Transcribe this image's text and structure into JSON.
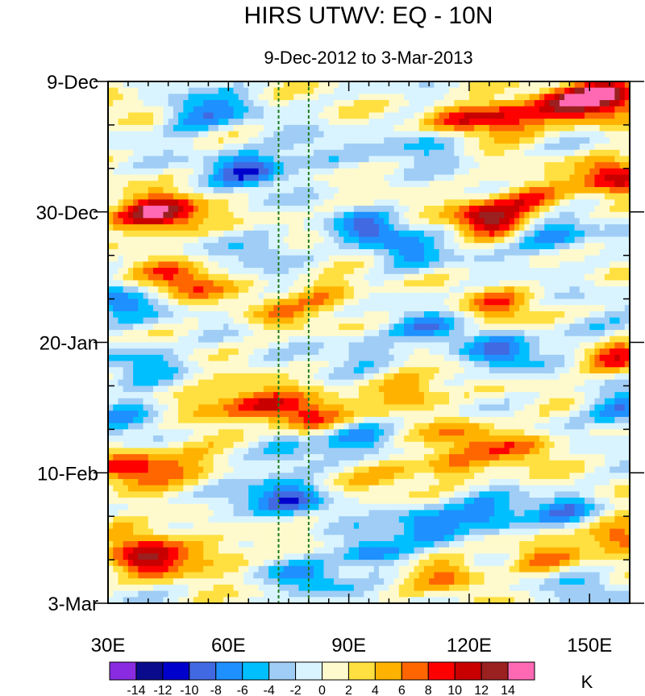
{
  "chart_data": {
    "type": "heatmap",
    "title": "HIRS UTWV: EQ - 10N",
    "subtitle": "9-Dec-2012 to 3-Mar-2013",
    "xlabel": "",
    "ylabel": "",
    "x_range": [
      30,
      160
    ],
    "x_ticks": [
      {
        "value": 30,
        "label": "30E"
      },
      {
        "value": 60,
        "label": "60E"
      },
      {
        "value": 90,
        "label": "90E"
      },
      {
        "value": 120,
        "label": "120E"
      },
      {
        "value": 150,
        "label": "150E"
      }
    ],
    "y_range_days": [
      0,
      84
    ],
    "y_ticks": [
      {
        "value": 0,
        "label": "9-Dec"
      },
      {
        "value": 21,
        "label": "30-Dec"
      },
      {
        "value": 42,
        "label": "20-Jan"
      },
      {
        "value": 63,
        "label": "10-Feb"
      },
      {
        "value": 84,
        "label": "3-Mar"
      }
    ],
    "reference_lines_lon": [
      72.5,
      80
    ],
    "colorbar": {
      "unit": "K",
      "levels": [
        -14,
        -12,
        -10,
        -8,
        -6,
        -4,
        -2,
        0,
        2,
        4,
        6,
        8,
        10,
        12,
        14
      ],
      "colors": [
        "#8a2be2",
        "#0a0a8c",
        "#0000cd",
        "#4169e1",
        "#1e90ff",
        "#00bfff",
        "#a0cdf5",
        "#d9f4ff",
        "#fffacd",
        "#ffe040",
        "#ffb300",
        "#ff6600",
        "#ff0000",
        "#c80000",
        "#9b2020",
        "#ff69b4"
      ]
    },
    "anomalies": [
      {
        "lon": 35,
        "day": 5,
        "value": 2
      },
      {
        "lon": 50,
        "day": 6,
        "value": -6
      },
      {
        "lon": 58,
        "day": 4,
        "value": -4
      },
      {
        "lon": 65,
        "day": 14,
        "value": -10
      },
      {
        "lon": 80,
        "day": 12,
        "value": -4
      },
      {
        "lon": 110,
        "day": 10,
        "value": -6
      },
      {
        "lon": 118,
        "day": 6,
        "value": 8
      },
      {
        "lon": 130,
        "day": 6,
        "value": 10
      },
      {
        "lon": 145,
        "day": 4,
        "value": 10
      },
      {
        "lon": 155,
        "day": 2,
        "value": 14
      },
      {
        "lon": 157,
        "day": 15,
        "value": 12
      },
      {
        "lon": 135,
        "day": 19,
        "value": 8
      },
      {
        "lon": 125,
        "day": 22,
        "value": 12
      },
      {
        "lon": 140,
        "day": 25,
        "value": -8
      },
      {
        "lon": 45,
        "day": 21,
        "value": 10
      },
      {
        "lon": 38,
        "day": 22,
        "value": 8
      },
      {
        "lon": 95,
        "day": 24,
        "value": -8
      },
      {
        "lon": 105,
        "day": 28,
        "value": -6
      },
      {
        "lon": 70,
        "day": 27,
        "value": -4
      },
      {
        "lon": 45,
        "day": 31,
        "value": 4
      },
      {
        "lon": 50,
        "day": 33,
        "value": 6
      },
      {
        "lon": 32,
        "day": 36,
        "value": -8
      },
      {
        "lon": 85,
        "day": 34,
        "value": 6
      },
      {
        "lon": 72,
        "day": 38,
        "value": 4
      },
      {
        "lon": 128,
        "day": 36,
        "value": 6
      },
      {
        "lon": 110,
        "day": 40,
        "value": -6
      },
      {
        "lon": 95,
        "day": 43,
        "value": -4
      },
      {
        "lon": 150,
        "day": 41,
        "value": -6
      },
      {
        "lon": 128,
        "day": 44,
        "value": -8
      },
      {
        "lon": 155,
        "day": 44,
        "value": 10
      },
      {
        "lon": 40,
        "day": 45,
        "value": -6
      },
      {
        "lon": 55,
        "day": 52,
        "value": 6
      },
      {
        "lon": 68,
        "day": 52,
        "value": 8
      },
      {
        "lon": 80,
        "day": 54,
        "value": 10
      },
      {
        "lon": 105,
        "day": 50,
        "value": 8
      },
      {
        "lon": 35,
        "day": 54,
        "value": -8
      },
      {
        "lon": 92,
        "day": 57,
        "value": -6
      },
      {
        "lon": 120,
        "day": 57,
        "value": 6
      },
      {
        "lon": 135,
        "day": 59,
        "value": 6
      },
      {
        "lon": 158,
        "day": 53,
        "value": -8
      },
      {
        "lon": 75,
        "day": 60,
        "value": -6
      },
      {
        "lon": 36,
        "day": 62,
        "value": 10
      },
      {
        "lon": 50,
        "day": 62,
        "value": 6
      },
      {
        "lon": 115,
        "day": 62,
        "value": 6
      },
      {
        "lon": 100,
        "day": 63,
        "value": 4
      },
      {
        "lon": 75,
        "day": 67,
        "value": -8
      },
      {
        "lon": 60,
        "day": 68,
        "value": -4
      },
      {
        "lon": 110,
        "day": 71,
        "value": -8
      },
      {
        "lon": 125,
        "day": 70,
        "value": -8
      },
      {
        "lon": 145,
        "day": 69,
        "value": -6
      },
      {
        "lon": 37,
        "day": 73,
        "value": 6
      },
      {
        "lon": 40,
        "day": 77,
        "value": 10
      },
      {
        "lon": 55,
        "day": 76,
        "value": 6
      },
      {
        "lon": 95,
        "day": 76,
        "value": -8
      },
      {
        "lon": 115,
        "day": 79,
        "value": 6
      },
      {
        "lon": 138,
        "day": 77,
        "value": 6
      },
      {
        "lon": 158,
        "day": 73,
        "value": 10
      },
      {
        "lon": 80,
        "day": 80,
        "value": -6
      },
      {
        "lon": 150,
        "day": 81,
        "value": -4
      }
    ]
  }
}
